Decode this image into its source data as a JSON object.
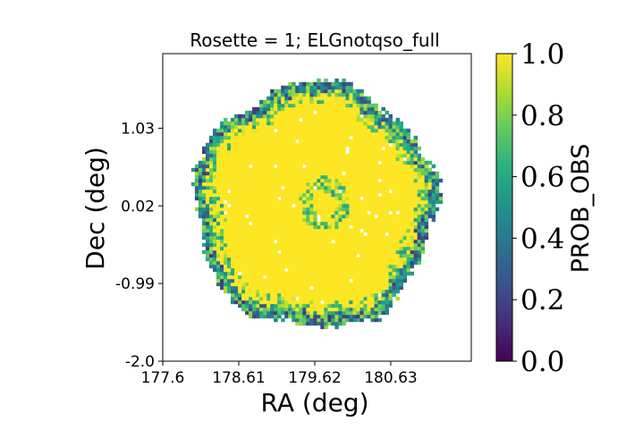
{
  "chart_data": {
    "type": "heatmap",
    "title": "Rosette = 1; ELGnotqso_full",
    "xlabel": "RA (deg)",
    "ylabel": "Dec (deg)",
    "xlim": [
      177.6,
      181.7
    ],
    "ylim": [
      -2.0,
      2.0
    ],
    "xticks": [
      177.6,
      178.61,
      179.62,
      180.63
    ],
    "xtick_labels": [
      "177.6",
      "178.61",
      "179.62",
      "180.63"
    ],
    "yticks": [
      -2.0,
      -0.99,
      0.02,
      1.03
    ],
    "ytick_labels": [
      "-2.0",
      "-0.99",
      "0.02",
      "1.03"
    ],
    "colorbar": {
      "label": "PROB_OBS",
      "range": [
        0.0,
        1.0
      ],
      "ticks": [
        0.0,
        0.2,
        0.4,
        0.6,
        0.8,
        1.0
      ],
      "tick_labels": [
        "0.0",
        "0.2",
        "0.4",
        "0.6",
        "0.8",
        "1.0"
      ],
      "colormap": "viridis"
    },
    "footprint": {
      "shape": "circular rosette",
      "center_ra": 179.62,
      "center_dec": 0.02,
      "radius_deg": 1.6,
      "interior_value": 1.0,
      "edge_values": "0.0–1.0, mostly 0.3–0.8 along the rim",
      "central_dip": "ring of lower values (~0.6–0.8) around RA 179.75, Dec 0.05"
    }
  },
  "colors": {
    "viridis_0": "#440154",
    "viridis_025": "#3b528b",
    "viridis_05": "#21918c",
    "viridis_075": "#5ec962",
    "viridis_1": "#fde725"
  }
}
